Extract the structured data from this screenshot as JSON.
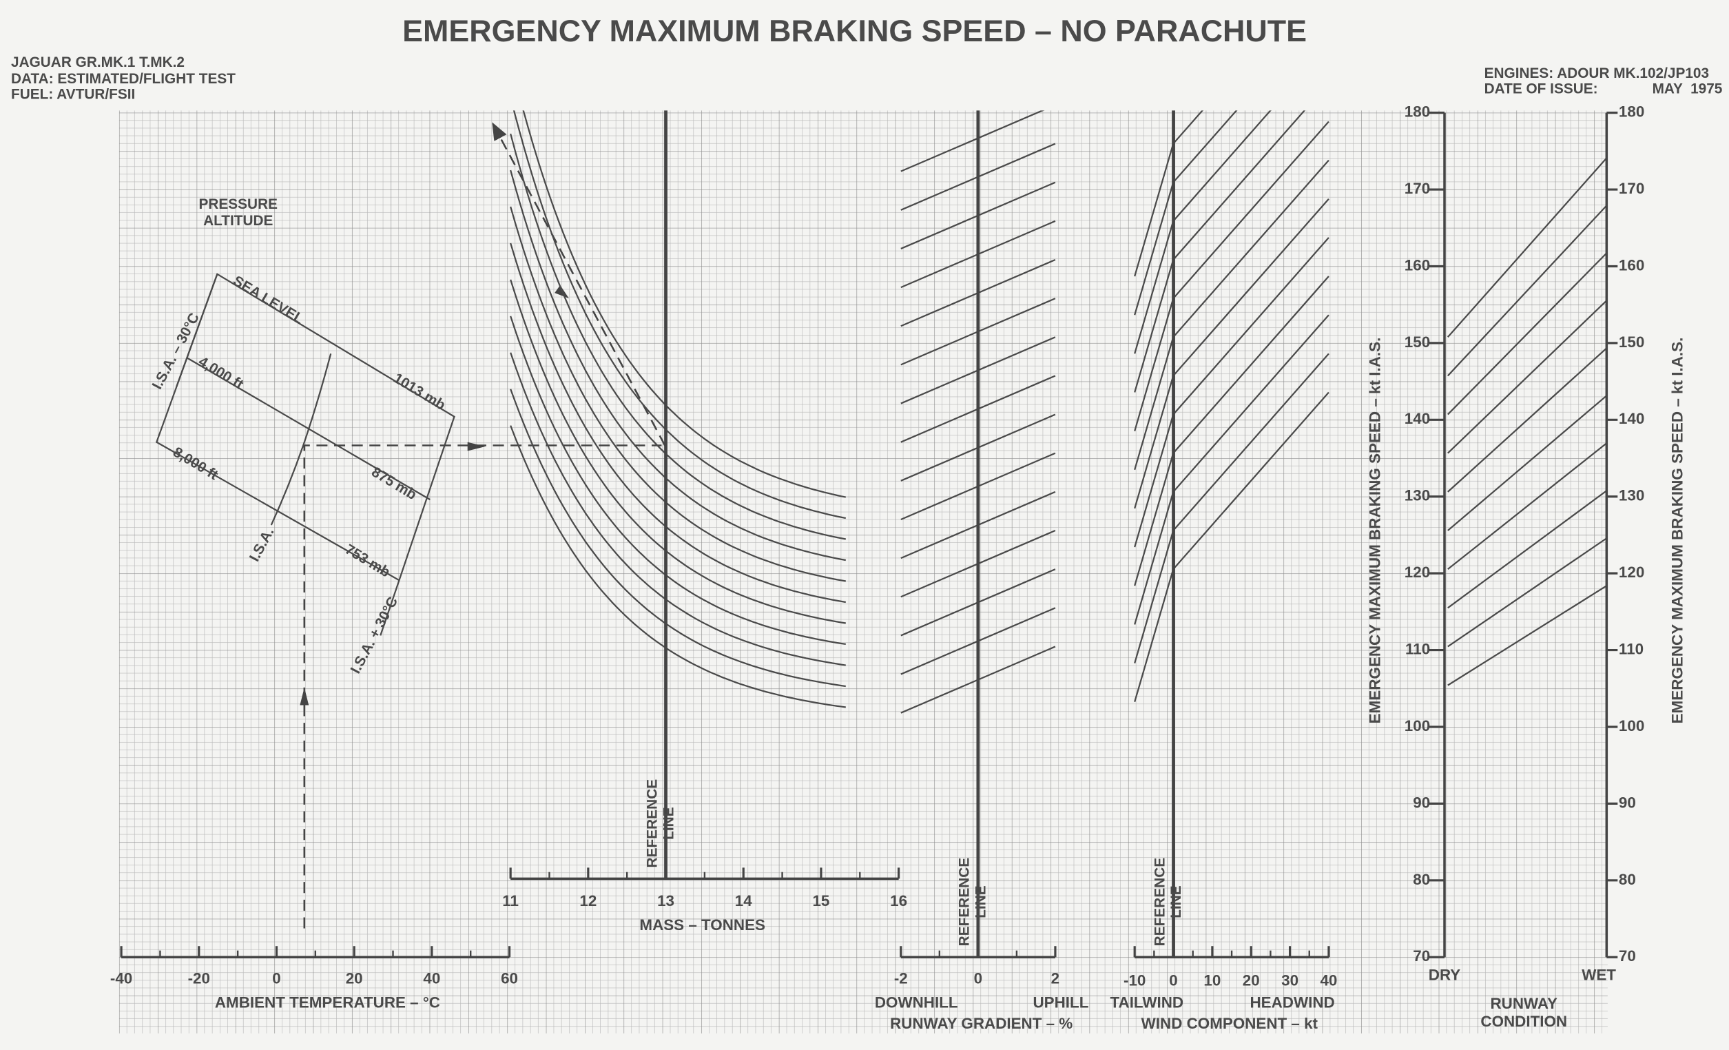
{
  "header": {
    "title": "EMERGENCY MAXIMUM BRAKING SPEED – NO PARACHUTE",
    "aircraft": "JAGUAR GR.MK.1 T.MK.2",
    "data": "DATA: ESTIMATED/FLIGHT TEST",
    "fuel": "FUEL: AVTUR/FSII",
    "engines": "ENGINES: ADOUR MK.102/JP103",
    "date_label": "DATE OF ISSUE:",
    "date": "MAY  1975"
  },
  "chart_data": [
    {
      "type": "axis",
      "xlabel": "AMBIENT TEMPERATURE – °C",
      "xlim": [
        -40,
        60
      ],
      "xticks": [
        -40,
        -20,
        0,
        20,
        40,
        60
      ],
      "annotations": [
        "PRESSURE ALTITUDE",
        "SEA LEVEL",
        "4,000 ft",
        "8,000 ft",
        "1013 mb",
        "875 mb",
        "753 mb",
        "I.S.A. – 30°C",
        "I.S.A.",
        "I.S.A. + 30°C"
      ]
    },
    {
      "type": "axis",
      "xlabel": "MASS – TONNES",
      "xlim": [
        11,
        16
      ],
      "xticks": [
        11,
        12,
        13,
        14,
        15,
        16
      ],
      "reference": "REFERENCE LINE"
    },
    {
      "type": "axis",
      "xlabel": "RUNWAY GRADIENT – %",
      "xlim": [
        -2,
        2
      ],
      "xticks": [
        -2,
        0,
        2
      ],
      "left_label": "DOWNHILL",
      "right_label": "UPHILL",
      "reference": "REFERENCE LINE"
    },
    {
      "type": "axis",
      "xlabel": "WIND COMPONENT – kt",
      "xlim": [
        -10,
        40
      ],
      "xticks": [
        -10,
        0,
        10,
        20,
        30,
        40
      ],
      "left_label": "TAILWIND",
      "right_label": "HEADWIND",
      "reference": "REFERENCE LINE"
    },
    {
      "type": "scale",
      "ylabel": "EMERGENCY MAXIMUM BRAKING SPEED – kt I.A.S.",
      "ylim": [
        70,
        180
      ],
      "yticks": [
        70,
        80,
        90,
        100,
        110,
        120,
        130,
        140,
        150,
        160,
        170,
        180
      ],
      "categories": [
        "DRY",
        "WET"
      ],
      "xlabel": "RUNWAY CONDITION"
    }
  ]
}
